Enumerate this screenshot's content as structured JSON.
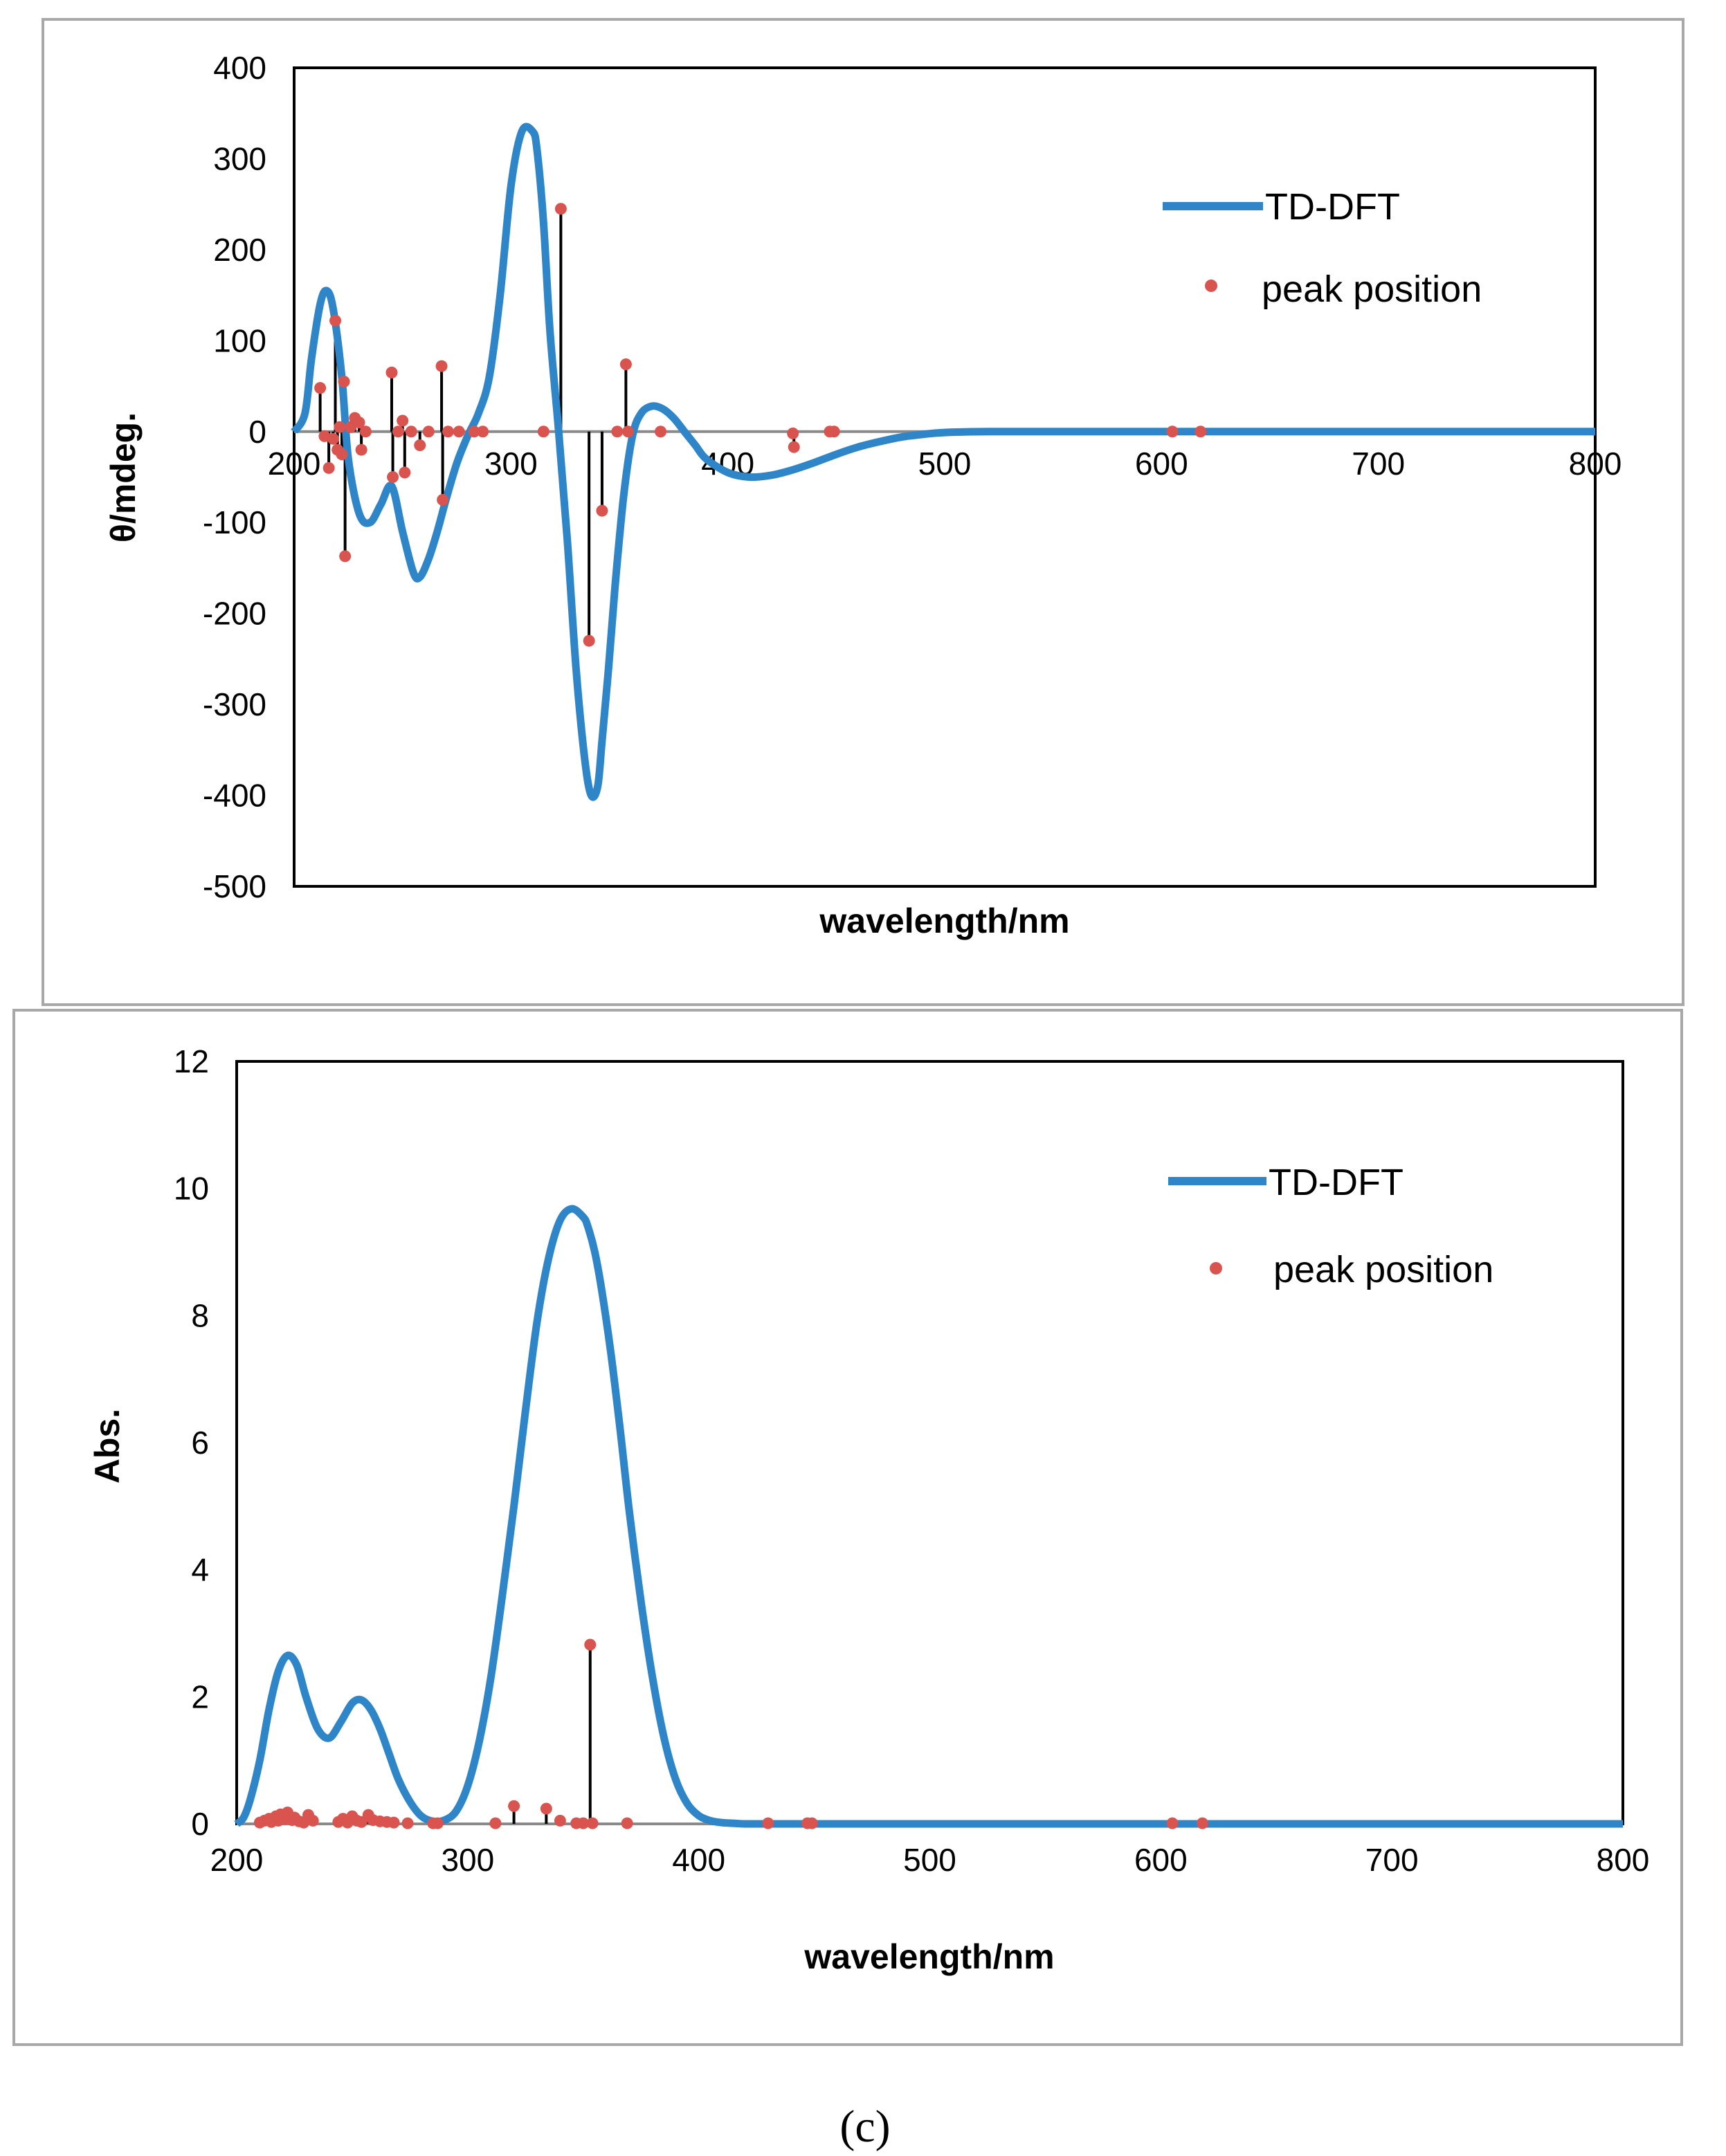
{
  "chart_data": [
    {
      "type": "line",
      "panel": "top",
      "title": "",
      "xlabel": "wavelength/nm",
      "ylabel": "θ/mdeg.",
      "xlim": [
        200,
        800
      ],
      "ylim": [
        -500,
        400
      ],
      "xticks": [
        "200",
        "300",
        "400",
        "500",
        "600",
        "700",
        "800"
      ],
      "yticks": [
        "400",
        "300",
        "200",
        "100",
        "0",
        "-100",
        "-200",
        "-300",
        "-400",
        "-500"
      ],
      "legend": {
        "position": "top-right",
        "line_label": "TD-DFT",
        "dot_label": "peak position"
      },
      "colors": {
        "line": "#2E86C8",
        "dots": "#D9534F",
        "sticks": "#000000"
      },
      "series": [
        {
          "name": "TD-DFT",
          "x": [
            200,
            205,
            208,
            212,
            215,
            218,
            222,
            225,
            230,
            235,
            240,
            245,
            250,
            255,
            258,
            262,
            266,
            270,
            275,
            280,
            285,
            290,
            295,
            300,
            305,
            310,
            312,
            315,
            318,
            322,
            326,
            330,
            334,
            337,
            340,
            342,
            345,
            348,
            352,
            356,
            360,
            365,
            370,
            375,
            380,
            385,
            390,
            400,
            410,
            420,
            430,
            440,
            450,
            460,
            470,
            480,
            490,
            500,
            520,
            550,
            600,
            650,
            700,
            750,
            800
          ],
          "y": [
            0,
            20,
            80,
            140,
            155,
            135,
            60,
            -30,
            -90,
            -100,
            -80,
            -60,
            -110,
            -155,
            -160,
            -140,
            -110,
            -75,
            -35,
            -5,
            20,
            60,
            150,
            270,
            330,
            330,
            310,
            230,
            110,
            0,
            -120,
            -260,
            -360,
            -400,
            -390,
            -340,
            -260,
            -170,
            -70,
            -5,
            20,
            28,
            25,
            15,
            0,
            -15,
            -30,
            -45,
            -50,
            -48,
            -42,
            -34,
            -25,
            -17,
            -11,
            -6,
            -3,
            -1,
            0,
            0,
            0,
            0,
            0,
            0,
            0
          ]
        }
      ],
      "peaks": [
        {
          "x": 212,
          "y": 48
        },
        {
          "x": 214,
          "y": -5
        },
        {
          "x": 216,
          "y": -40
        },
        {
          "x": 218,
          "y": -8
        },
        {
          "x": 219,
          "y": 122
        },
        {
          "x": 220,
          "y": -20
        },
        {
          "x": 221,
          "y": 5
        },
        {
          "x": 222,
          "y": -25
        },
        {
          "x": 223,
          "y": 55
        },
        {
          "x": 223.5,
          "y": -137
        },
        {
          "x": 226,
          "y": 5
        },
        {
          "x": 228,
          "y": 15
        },
        {
          "x": 230,
          "y": 10
        },
        {
          "x": 231,
          "y": -20
        },
        {
          "x": 233,
          "y": 0
        },
        {
          "x": 245,
          "y": 65
        },
        {
          "x": 245.5,
          "y": -50
        },
        {
          "x": 248,
          "y": 0
        },
        {
          "x": 250,
          "y": 12
        },
        {
          "x": 251,
          "y": -45
        },
        {
          "x": 254,
          "y": 0
        },
        {
          "x": 258,
          "y": -15
        },
        {
          "x": 262,
          "y": 0
        },
        {
          "x": 268,
          "y": 72
        },
        {
          "x": 268.5,
          "y": -75
        },
        {
          "x": 271,
          "y": 0
        },
        {
          "x": 276,
          "y": 0
        },
        {
          "x": 283,
          "y": 0
        },
        {
          "x": 287,
          "y": 0
        },
        {
          "x": 315,
          "y": 0
        },
        {
          "x": 323,
          "y": 245
        },
        {
          "x": 336,
          "y": -230
        },
        {
          "x": 342,
          "y": -87
        },
        {
          "x": 349,
          "y": 0
        },
        {
          "x": 353,
          "y": 74
        },
        {
          "x": 354,
          "y": 0
        },
        {
          "x": 369,
          "y": 0
        },
        {
          "x": 430,
          "y": -2
        },
        {
          "x": 430.5,
          "y": -17
        },
        {
          "x": 447,
          "y": 0
        },
        {
          "x": 449,
          "y": 0
        },
        {
          "x": 605,
          "y": 0
        },
        {
          "x": 618,
          "y": 0
        }
      ]
    },
    {
      "type": "line",
      "panel": "bottom",
      "title": "",
      "xlabel": "wavelength/nm",
      "ylabel": "Abs.",
      "xlim": [
        200,
        800
      ],
      "ylim": [
        0,
        12
      ],
      "xticks": [
        "200",
        "300",
        "400",
        "500",
        "600",
        "700",
        "800"
      ],
      "yticks": [
        "12",
        "10",
        "8",
        "6",
        "4",
        "2",
        "0"
      ],
      "legend": {
        "position": "top-right",
        "line_label": "TD-DFT",
        "dot_label": "peak position"
      },
      "colors": {
        "line": "#2E86C8",
        "dots": "#D9534F",
        "sticks": "#000000"
      },
      "series": [
        {
          "name": "TD-DFT",
          "x": [
            200,
            203,
            206,
            210,
            214,
            218,
            222,
            226,
            230,
            235,
            240,
            245,
            250,
            254,
            258,
            262,
            266,
            270,
            275,
            280,
            285,
            290,
            295,
            300,
            305,
            310,
            315,
            320,
            325,
            330,
            335,
            340,
            345,
            350,
            352,
            355,
            358,
            362,
            366,
            370,
            375,
            380,
            385,
            390,
            395,
            400,
            405,
            410,
            415,
            420,
            430,
            450,
            500,
            600,
            700,
            800
          ],
          "y": [
            0,
            0.1,
            0.4,
            1.0,
            1.8,
            2.4,
            2.65,
            2.5,
            2.0,
            1.5,
            1.35,
            1.6,
            1.9,
            1.95,
            1.8,
            1.5,
            1.1,
            0.7,
            0.35,
            0.12,
            0.04,
            0.06,
            0.2,
            0.6,
            1.3,
            2.3,
            3.6,
            5.0,
            6.5,
            7.9,
            8.9,
            9.5,
            9.68,
            9.55,
            9.4,
            9.0,
            8.4,
            7.4,
            6.2,
            4.9,
            3.5,
            2.3,
            1.35,
            0.7,
            0.32,
            0.13,
            0.05,
            0.02,
            0.01,
            0,
            0,
            0,
            0,
            0,
            0,
            0
          ]
        }
      ],
      "peaks": [
        {
          "x": 210,
          "y": 0.02
        },
        {
          "x": 212,
          "y": 0.05
        },
        {
          "x": 214,
          "y": 0.08
        },
        {
          "x": 215,
          "y": 0.03
        },
        {
          "x": 217,
          "y": 0.12
        },
        {
          "x": 218,
          "y": 0.05
        },
        {
          "x": 219,
          "y": 0.15
        },
        {
          "x": 221,
          "y": 0.08
        },
        {
          "x": 222,
          "y": 0.18
        },
        {
          "x": 224,
          "y": 0.06
        },
        {
          "x": 225,
          "y": 0.1
        },
        {
          "x": 227,
          "y": 0.04
        },
        {
          "x": 229,
          "y": 0.02
        },
        {
          "x": 231,
          "y": 0.14
        },
        {
          "x": 233,
          "y": 0.05
        },
        {
          "x": 244,
          "y": 0.03
        },
        {
          "x": 246,
          "y": 0.08
        },
        {
          "x": 248,
          "y": 0.02
        },
        {
          "x": 250,
          "y": 0.12
        },
        {
          "x": 252,
          "y": 0.05
        },
        {
          "x": 254,
          "y": 0.03
        },
        {
          "x": 257,
          "y": 0.14
        },
        {
          "x": 259,
          "y": 0.06
        },
        {
          "x": 262,
          "y": 0.04
        },
        {
          "x": 265,
          "y": 0.03
        },
        {
          "x": 268,
          "y": 0.02
        },
        {
          "x": 274,
          "y": 0.01
        },
        {
          "x": 285,
          "y": 0.01
        },
        {
          "x": 287,
          "y": 0.01
        },
        {
          "x": 312,
          "y": 0.01
        },
        {
          "x": 320,
          "y": 0.28
        },
        {
          "x": 334,
          "y": 0.24
        },
        {
          "x": 340,
          "y": 0.05
        },
        {
          "x": 347,
          "y": 0.01
        },
        {
          "x": 350,
          "y": 0.01
        },
        {
          "x": 353,
          "y": 2.82
        },
        {
          "x": 354,
          "y": 0.01
        },
        {
          "x": 369,
          "y": 0.01
        },
        {
          "x": 430,
          "y": 0.01
        },
        {
          "x": 447,
          "y": 0.01
        },
        {
          "x": 449,
          "y": 0.01
        },
        {
          "x": 605,
          "y": 0.01
        },
        {
          "x": 618,
          "y": 0.01
        }
      ]
    }
  ],
  "caption": "(c)"
}
